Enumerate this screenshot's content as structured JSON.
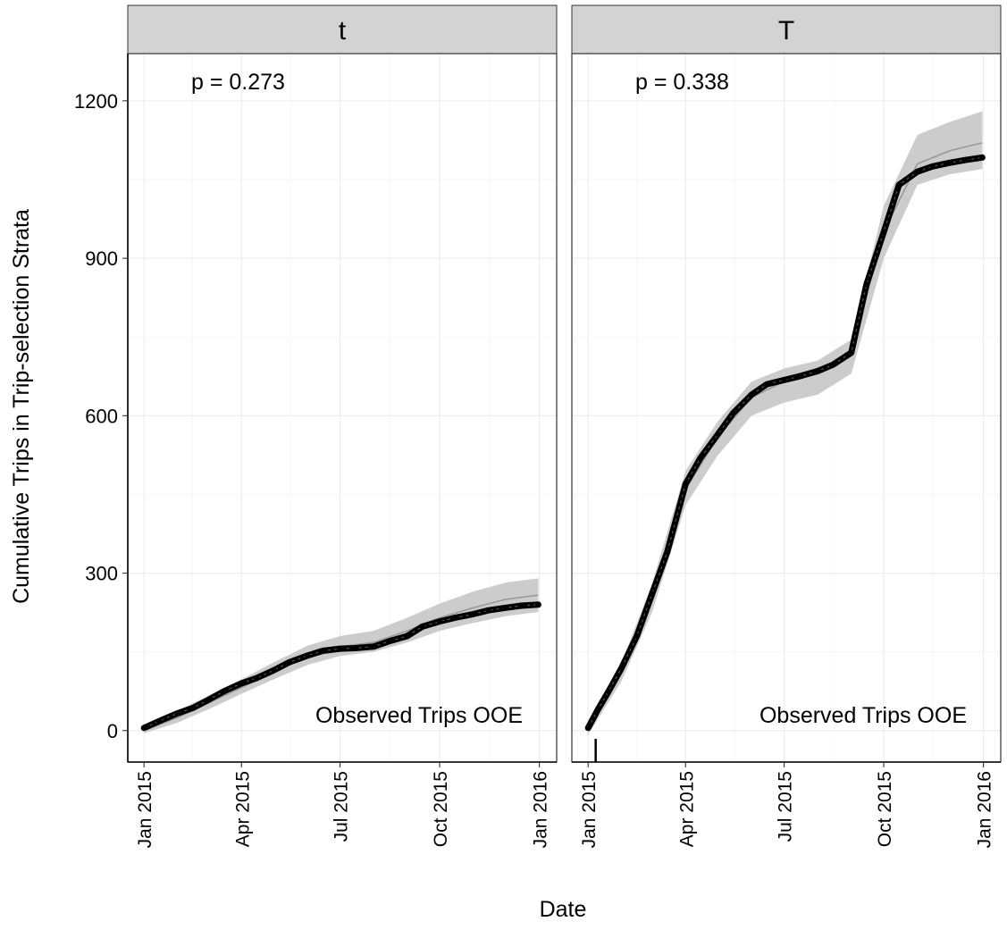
{
  "chart_data": {
    "type": "line",
    "xlabel": "Date",
    "ylabel": "Cumulative Trips in Trip-selection Strata",
    "ylim": [
      -60,
      1290
    ],
    "xlim": [
      "2014-12-17",
      "2016-01-17"
    ],
    "yticks": [
      0,
      300,
      600,
      900,
      1200
    ],
    "xticks": [
      {
        "date": "2015-01-01",
        "label": "Jan 2015"
      },
      {
        "date": "2015-04-01",
        "label": "Apr 2015"
      },
      {
        "date": "2015-07-01",
        "label": "Jul 2015"
      },
      {
        "date": "2015-10-01",
        "label": "Oct 2015"
      },
      {
        "date": "2016-01-01",
        "label": "Jan 2016"
      }
    ],
    "grid": true,
    "panels": [
      {
        "strip": "t",
        "p_label": "p = 0.273",
        "corner_label": "Observed Trips OOE",
        "rug": [],
        "observed": [
          {
            "x": "2015-01-01",
            "y": 5
          },
          {
            "x": "2015-01-15",
            "y": 18
          },
          {
            "x": "2015-02-01",
            "y": 33
          },
          {
            "x": "2015-02-15",
            "y": 43
          },
          {
            "x": "2015-03-01",
            "y": 58
          },
          {
            "x": "2015-03-15",
            "y": 74
          },
          {
            "x": "2015-04-01",
            "y": 90
          },
          {
            "x": "2015-04-15",
            "y": 100
          },
          {
            "x": "2015-05-01",
            "y": 115
          },
          {
            "x": "2015-05-15",
            "y": 130
          },
          {
            "x": "2015-06-01",
            "y": 143
          },
          {
            "x": "2015-06-15",
            "y": 152
          },
          {
            "x": "2015-07-01",
            "y": 156
          },
          {
            "x": "2015-07-15",
            "y": 157
          },
          {
            "x": "2015-08-01",
            "y": 160
          },
          {
            "x": "2015-08-15",
            "y": 170
          },
          {
            "x": "2015-09-01",
            "y": 180
          },
          {
            "x": "2015-09-15",
            "y": 198
          },
          {
            "x": "2015-10-01",
            "y": 208
          },
          {
            "x": "2015-10-15",
            "y": 215
          },
          {
            "x": "2015-11-01",
            "y": 222
          },
          {
            "x": "2015-11-15",
            "y": 229
          },
          {
            "x": "2015-12-01",
            "y": 234
          },
          {
            "x": "2015-12-15",
            "y": 238
          },
          {
            "x": "2015-12-31",
            "y": 240
          }
        ],
        "simulated_median": [
          {
            "x": "2015-01-01",
            "y": 0
          },
          {
            "x": "2015-02-01",
            "y": 25
          },
          {
            "x": "2015-03-01",
            "y": 52
          },
          {
            "x": "2015-04-01",
            "y": 82
          },
          {
            "x": "2015-05-01",
            "y": 112
          },
          {
            "x": "2015-06-01",
            "y": 142
          },
          {
            "x": "2015-07-01",
            "y": 160
          },
          {
            "x": "2015-08-01",
            "y": 168
          },
          {
            "x": "2015-09-01",
            "y": 190
          },
          {
            "x": "2015-10-01",
            "y": 215
          },
          {
            "x": "2015-11-01",
            "y": 234
          },
          {
            "x": "2015-12-01",
            "y": 250
          },
          {
            "x": "2015-12-31",
            "y": 258
          }
        ],
        "band_upper": [
          {
            "x": "2015-01-01",
            "y": 10
          },
          {
            "x": "2015-02-01",
            "y": 38
          },
          {
            "x": "2015-03-01",
            "y": 66
          },
          {
            "x": "2015-04-01",
            "y": 98
          },
          {
            "x": "2015-05-01",
            "y": 130
          },
          {
            "x": "2015-06-01",
            "y": 162
          },
          {
            "x": "2015-07-01",
            "y": 180
          },
          {
            "x": "2015-08-01",
            "y": 190
          },
          {
            "x": "2015-09-01",
            "y": 215
          },
          {
            "x": "2015-10-01",
            "y": 242
          },
          {
            "x": "2015-11-01",
            "y": 265
          },
          {
            "x": "2015-12-01",
            "y": 282
          },
          {
            "x": "2015-12-31",
            "y": 290
          }
        ],
        "band_lower": [
          {
            "x": "2015-01-01",
            "y": -5
          },
          {
            "x": "2015-02-01",
            "y": 15
          },
          {
            "x": "2015-03-01",
            "y": 40
          },
          {
            "x": "2015-04-01",
            "y": 70
          },
          {
            "x": "2015-05-01",
            "y": 98
          },
          {
            "x": "2015-06-01",
            "y": 125
          },
          {
            "x": "2015-07-01",
            "y": 142
          },
          {
            "x": "2015-08-01",
            "y": 150
          },
          {
            "x": "2015-09-01",
            "y": 168
          },
          {
            "x": "2015-10-01",
            "y": 190
          },
          {
            "x": "2015-11-01",
            "y": 205
          },
          {
            "x": "2015-12-01",
            "y": 218
          },
          {
            "x": "2015-12-31",
            "y": 226
          }
        ]
      },
      {
        "strip": "T",
        "p_label": "p = 0.338",
        "corner_label": "Observed Trips OOE",
        "rug": [
          "2015-01-08"
        ],
        "observed": [
          {
            "x": "2015-01-01",
            "y": 5
          },
          {
            "x": "2015-01-10",
            "y": 40
          },
          {
            "x": "2015-01-20",
            "y": 75
          },
          {
            "x": "2015-02-01",
            "y": 120
          },
          {
            "x": "2015-02-15",
            "y": 180
          },
          {
            "x": "2015-03-01",
            "y": 260
          },
          {
            "x": "2015-03-15",
            "y": 340
          },
          {
            "x": "2015-04-01",
            "y": 470
          },
          {
            "x": "2015-04-15",
            "y": 520
          },
          {
            "x": "2015-05-01",
            "y": 565
          },
          {
            "x": "2015-05-15",
            "y": 605
          },
          {
            "x": "2015-06-01",
            "y": 640
          },
          {
            "x": "2015-06-15",
            "y": 660
          },
          {
            "x": "2015-07-01",
            "y": 668
          },
          {
            "x": "2015-07-15",
            "y": 675
          },
          {
            "x": "2015-08-01",
            "y": 685
          },
          {
            "x": "2015-08-15",
            "y": 697
          },
          {
            "x": "2015-09-01",
            "y": 720
          },
          {
            "x": "2015-09-15",
            "y": 850
          },
          {
            "x": "2015-10-01",
            "y": 950
          },
          {
            "x": "2015-10-15",
            "y": 1040
          },
          {
            "x": "2015-11-01",
            "y": 1065
          },
          {
            "x": "2015-11-15",
            "y": 1075
          },
          {
            "x": "2015-12-01",
            "y": 1082
          },
          {
            "x": "2015-12-15",
            "y": 1087
          },
          {
            "x": "2015-12-31",
            "y": 1092
          }
        ],
        "simulated_median": [
          {
            "x": "2015-01-01",
            "y": 0
          },
          {
            "x": "2015-02-01",
            "y": 110
          },
          {
            "x": "2015-03-01",
            "y": 255
          },
          {
            "x": "2015-04-01",
            "y": 460
          },
          {
            "x": "2015-05-01",
            "y": 560
          },
          {
            "x": "2015-06-01",
            "y": 635
          },
          {
            "x": "2015-07-01",
            "y": 665
          },
          {
            "x": "2015-08-01",
            "y": 680
          },
          {
            "x": "2015-09-01",
            "y": 720
          },
          {
            "x": "2015-10-01",
            "y": 950
          },
          {
            "x": "2015-11-01",
            "y": 1080
          },
          {
            "x": "2015-12-01",
            "y": 1105
          },
          {
            "x": "2015-12-31",
            "y": 1120
          }
        ],
        "band_upper": [
          {
            "x": "2015-01-01",
            "y": 15
          },
          {
            "x": "2015-02-01",
            "y": 130
          },
          {
            "x": "2015-03-01",
            "y": 280
          },
          {
            "x": "2015-04-01",
            "y": 495
          },
          {
            "x": "2015-05-01",
            "y": 590
          },
          {
            "x": "2015-06-01",
            "y": 665
          },
          {
            "x": "2015-07-01",
            "y": 690
          },
          {
            "x": "2015-08-01",
            "y": 705
          },
          {
            "x": "2015-09-01",
            "y": 745
          },
          {
            "x": "2015-10-01",
            "y": 1000
          },
          {
            "x": "2015-11-01",
            "y": 1135
          },
          {
            "x": "2015-12-01",
            "y": 1160
          },
          {
            "x": "2015-12-31",
            "y": 1180
          }
        ],
        "band_lower": [
          {
            "x": "2015-01-01",
            "y": -8
          },
          {
            "x": "2015-02-01",
            "y": 95
          },
          {
            "x": "2015-03-01",
            "y": 225
          },
          {
            "x": "2015-04-01",
            "y": 430
          },
          {
            "x": "2015-05-01",
            "y": 525
          },
          {
            "x": "2015-06-01",
            "y": 600
          },
          {
            "x": "2015-07-01",
            "y": 625
          },
          {
            "x": "2015-08-01",
            "y": 640
          },
          {
            "x": "2015-09-01",
            "y": 680
          },
          {
            "x": "2015-10-01",
            "y": 900
          },
          {
            "x": "2015-11-01",
            "y": 1040
          },
          {
            "x": "2015-12-01",
            "y": 1060
          },
          {
            "x": "2015-12-31",
            "y": 1070
          }
        ]
      }
    ]
  }
}
